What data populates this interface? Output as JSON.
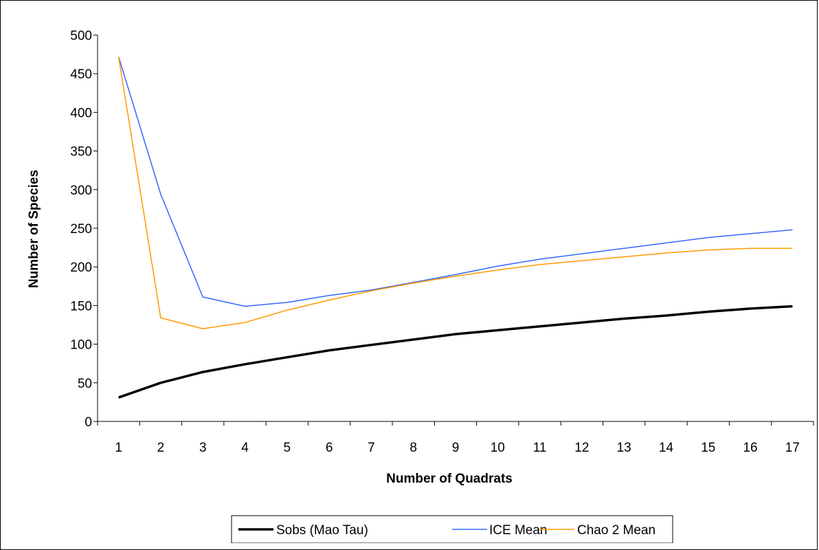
{
  "chart_data": {
    "type": "line",
    "xlabel": "Number of Quadrats",
    "ylabel": "Number of Species",
    "categories": [
      "1",
      "2",
      "3",
      "4",
      "5",
      "6",
      "7",
      "8",
      "9",
      "10",
      "11",
      "12",
      "13",
      "14",
      "15",
      "16",
      "17"
    ],
    "ylim": [
      0,
      500
    ],
    "yticks": [
      "0",
      "50",
      "100",
      "150",
      "200",
      "250",
      "300",
      "350",
      "400",
      "450",
      "500"
    ],
    "grid": false,
    "legend_position": "bottom",
    "series": [
      {
        "name": "Sobs (Mao Tau)",
        "color": "#000000",
        "values": [
          31,
          50,
          64,
          74,
          83,
          92,
          99,
          106,
          113,
          118,
          123,
          128,
          133,
          137,
          142,
          146,
          149
        ]
      },
      {
        "name": "ICE Mean",
        "color": "#3366ff",
        "values": [
          472,
          294,
          161,
          149,
          154,
          163,
          170,
          180,
          190,
          201,
          210,
          217,
          224,
          231,
          238,
          243,
          248
        ]
      },
      {
        "name": "Chao 2 Mean",
        "color": "#ff9900",
        "values": [
          472,
          134,
          120,
          128,
          144,
          157,
          169,
          179,
          188,
          196,
          203,
          208,
          213,
          218,
          222,
          224,
          224
        ]
      }
    ]
  }
}
